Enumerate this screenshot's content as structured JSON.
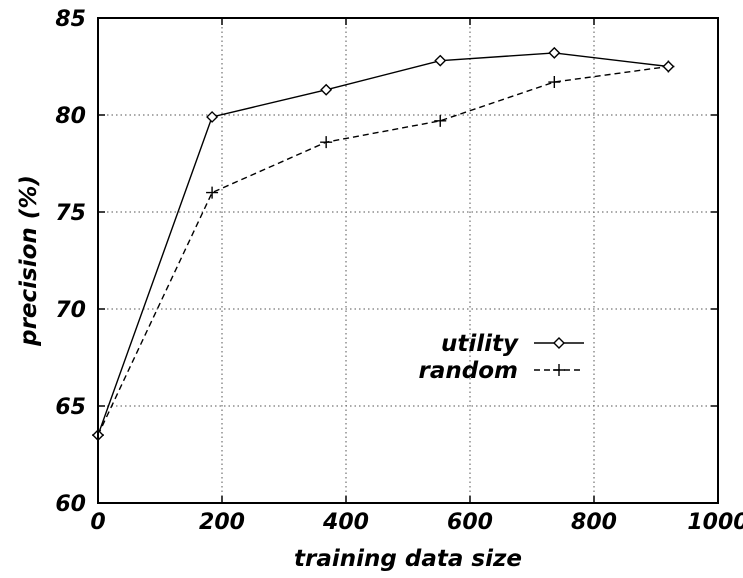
{
  "chart_data": {
    "type": "line",
    "title": "",
    "xlabel": "training data size",
    "ylabel": "precision (%)",
    "xlim": [
      0,
      1000
    ],
    "ylim": [
      60,
      85
    ],
    "xticks": [
      0,
      200,
      400,
      600,
      800,
      1000
    ],
    "yticks": [
      60,
      65,
      70,
      75,
      80,
      85
    ],
    "grid": true,
    "legend_position": "center-right",
    "series": [
      {
        "name": "utility",
        "marker": "diamond",
        "line_style": "solid",
        "color": "#000000",
        "x": [
          0,
          184,
          368,
          552,
          736,
          920
        ],
        "y": [
          63.5,
          79.9,
          81.3,
          82.8,
          83.2,
          82.5
        ]
      },
      {
        "name": "random",
        "marker": "plus",
        "line_style": "dashed",
        "color": "#000000",
        "x": [
          0,
          184,
          368,
          552,
          736,
          920
        ],
        "y": [
          63.5,
          76.0,
          78.6,
          79.7,
          81.7,
          82.5
        ]
      }
    ]
  }
}
